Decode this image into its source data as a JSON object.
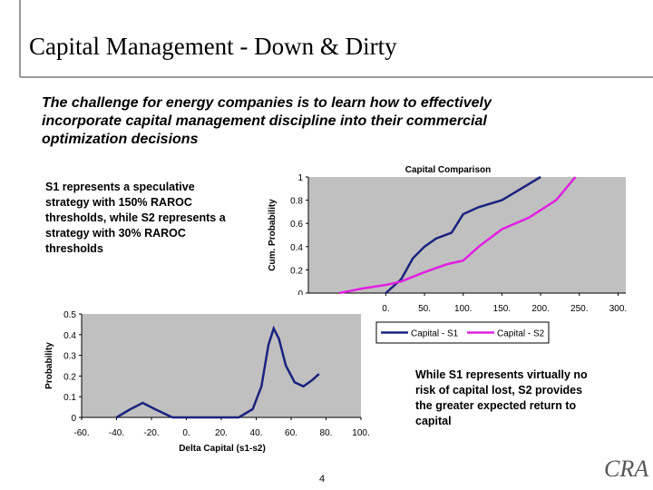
{
  "title": "Capital Management - Down & Dirty",
  "intro": "The challenge for energy companies is to learn how to effectively incorporate capital management discipline into their commercial optimization decisions",
  "note_left": "S1 represents a speculative strategy with 150% RAROC thresholds, while S2 represents a strategy with 30% RAROC thresholds",
  "note_right": "While S1 represents virtually no risk of capital lost, S2 provides the greater expected return to capital",
  "page_number": "4",
  "logo": "CRA",
  "chart_data": [
    {
      "type": "line",
      "title": "Capital Comparison",
      "y_label": "Cum. Probability",
      "xlim": [
        -100,
        310
      ],
      "ylim": [
        0,
        1
      ],
      "plot_color": "#c0c0c0",
      "grid": false,
      "xticks": [
        {
          "value": 0,
          "label": "0."
        },
        {
          "value": 50,
          "label": "50."
        },
        {
          "value": 100,
          "label": "100."
        },
        {
          "value": 150,
          "label": "150."
        },
        {
          "value": 200,
          "label": "200."
        },
        {
          "value": 250,
          "label": "250."
        },
        {
          "value": 300,
          "label": "300."
        }
      ],
      "yticks": [
        0,
        0.2,
        0.4,
        0.6,
        0.8,
        1
      ],
      "legend": "bottom",
      "series": [
        {
          "name": "Capital - S1",
          "color": "#1a237e",
          "x": [
            0,
            20,
            35,
            50,
            65,
            85,
            100,
            120,
            150,
            175,
            200
          ],
          "values": [
            0,
            0.12,
            0.3,
            0.4,
            0.47,
            0.52,
            0.68,
            0.74,
            0.8,
            0.9,
            1
          ]
        },
        {
          "name": "Capital - S2",
          "color": "#e020e0",
          "x": [
            -60,
            -30,
            0,
            20,
            50,
            80,
            100,
            120,
            150,
            185,
            220,
            245
          ],
          "values": [
            0,
            0.04,
            0.07,
            0.1,
            0.18,
            0.25,
            0.28,
            0.4,
            0.55,
            0.65,
            0.8,
            1
          ]
        }
      ]
    },
    {
      "type": "line",
      "x_label": "Delta Capital (s1-s2)",
      "y_label": "Probability",
      "xlim": [
        -60,
        100
      ],
      "ylim": [
        0,
        0.5
      ],
      "plot_color": "#c0c0c0",
      "grid": false,
      "color": "#1a237e",
      "xticks": [
        {
          "value": -60,
          "label": "-60."
        },
        {
          "value": -40,
          "label": "-40."
        },
        {
          "value": -20,
          "label": "-20."
        },
        {
          "value": 0,
          "label": "0."
        },
        {
          "value": 20,
          "label": "20."
        },
        {
          "value": 40,
          "label": "40."
        },
        {
          "value": 60,
          "label": "60."
        },
        {
          "value": 80,
          "label": "80."
        },
        {
          "value": 100,
          "label": "100."
        }
      ],
      "yticks": [
        0,
        0.1,
        0.2,
        0.3,
        0.4,
        0.5
      ],
      "x": [
        -40,
        -32,
        -25,
        -18,
        -8,
        30,
        38,
        43,
        47,
        50,
        53,
        57,
        62,
        67,
        72,
        76
      ],
      "values": [
        0,
        0.04,
        0.07,
        0.04,
        0,
        0,
        0.04,
        0.15,
        0.35,
        0.43,
        0.38,
        0.25,
        0.17,
        0.15,
        0.18,
        0.21
      ]
    }
  ]
}
